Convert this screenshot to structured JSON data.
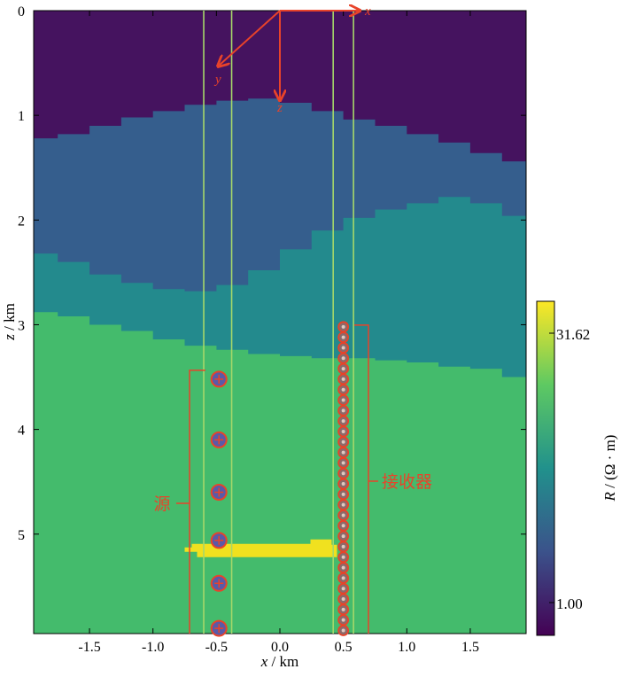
{
  "chart_data": {
    "type": "heatmap",
    "xlabel_italic": "x",
    "xlabel_unit": " / km",
    "ylabel_italic": "z",
    "ylabel_unit": " / km",
    "xlim": [
      -1.94,
      1.94
    ],
    "ylim": [
      0,
      5.95
    ],
    "x_ticks": [
      -1.5,
      -1.0,
      -0.5,
      0.0,
      0.5,
      1.0,
      1.5
    ],
    "x_tick_labels": [
      "-1.5",
      "-1.0",
      "-0.5",
      "0.0",
      "0.5",
      "1.0",
      "1.5"
    ],
    "y_ticks": [
      0,
      1,
      2,
      3,
      4,
      5
    ],
    "y_tick_labels": [
      "0",
      "1",
      "2",
      "3",
      "4",
      "5"
    ],
    "layer_colors": [
      "#45135f",
      "#355e8d",
      "#238a8d",
      "#44bb6c",
      "#f0e11f"
    ],
    "boundaries": {
      "x": [
        -1.94,
        -1.75,
        -1.5,
        -1.25,
        -1.0,
        -0.75,
        -0.5,
        -0.25,
        0.0,
        0.25,
        0.5,
        0.75,
        1.0,
        1.25,
        1.5,
        1.75,
        1.94
      ],
      "layer1_bottom": [
        1.22,
        1.18,
        1.1,
        1.02,
        0.96,
        0.9,
        0.86,
        0.84,
        0.88,
        0.96,
        1.04,
        1.1,
        1.18,
        1.26,
        1.36,
        1.44,
        1.44
      ],
      "layer2_bottom": [
        2.32,
        2.4,
        2.52,
        2.6,
        2.66,
        2.68,
        2.62,
        2.48,
        2.28,
        2.1,
        1.98,
        1.9,
        1.84,
        1.78,
        1.84,
        1.96,
        2.04
      ],
      "layer3_bottom": [
        2.88,
        2.92,
        3.0,
        3.06,
        3.14,
        3.2,
        3.24,
        3.28,
        3.3,
        3.32,
        3.32,
        3.34,
        3.36,
        3.4,
        3.42,
        3.5,
        3.54
      ]
    },
    "target_block": {
      "x": [
        -0.75,
        0.45
      ],
      "z": [
        5.05,
        5.22
      ]
    },
    "source_x": -0.48,
    "source_z": [
      3.52,
      4.1,
      4.6,
      5.06,
      5.47,
      5.9
    ],
    "receiver_x": 0.5,
    "receiver_z_range": [
      3.02,
      5.92
    ],
    "receiver_count": 30,
    "well_lines_x": [
      -0.6,
      -0.38,
      0.42,
      0.58
    ],
    "source_label": "源",
    "receiver_label": "接收器",
    "axis_x_label": "x",
    "axis_y_label": "y",
    "axis_z_label": "z",
    "colorbar": {
      "label_italic": "R",
      "label_unit": " / (Ω · m)",
      "tick_labels": [
        "31.62",
        "1.00"
      ]
    }
  }
}
